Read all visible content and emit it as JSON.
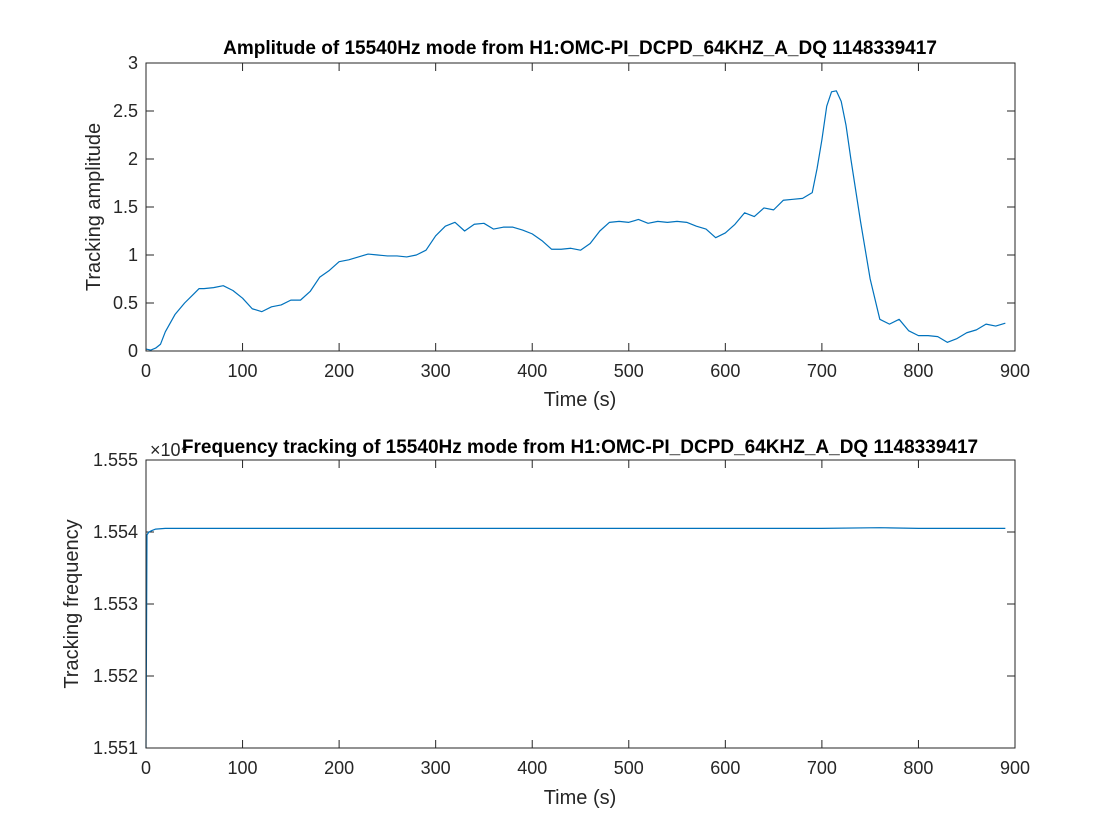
{
  "colors": {
    "series": "#0072BD",
    "axes": "#262626",
    "background": "#ffffff"
  },
  "chart_data": [
    {
      "type": "line",
      "title": "Amplitude of 15540Hz mode from H1:OMC-PI_DCPD_64KHZ_A_DQ 1148339417",
      "xlabel": "Time (s)",
      "ylabel": "Tracking amplitude",
      "xlim": [
        0,
        900
      ],
      "ylim": [
        0,
        3
      ],
      "xticks": [
        0,
        100,
        200,
        300,
        400,
        500,
        600,
        700,
        800,
        900
      ],
      "xtick_labels": [
        "0",
        "100",
        "200",
        "300",
        "400",
        "500",
        "600",
        "700",
        "800",
        "900"
      ],
      "yticks": [
        0,
        0.5,
        1,
        1.5,
        2,
        2.5,
        3
      ],
      "ytick_labels": [
        "0",
        "0.5",
        "1",
        "1.5",
        "2",
        "2.5",
        "3"
      ],
      "grid": false,
      "series": [
        {
          "x": [
            0,
            5,
            10,
            15,
            20,
            30,
            40,
            50,
            55,
            60,
            70,
            80,
            90,
            100,
            110,
            120,
            130,
            140,
            150,
            160,
            170,
            180,
            190,
            200,
            210,
            220,
            230,
            240,
            250,
            260,
            270,
            280,
            290,
            300,
            310,
            320,
            330,
            340,
            350,
            360,
            370,
            380,
            390,
            400,
            410,
            420,
            430,
            440,
            450,
            460,
            470,
            480,
            490,
            500,
            510,
            520,
            530,
            540,
            550,
            560,
            570,
            580,
            590,
            600,
            610,
            620,
            630,
            640,
            650,
            660,
            670,
            680,
            690,
            695,
            700,
            705,
            710,
            715,
            720,
            725,
            730,
            740,
            750,
            760,
            770,
            780,
            790,
            800,
            810,
            820,
            830,
            840,
            850,
            860,
            870,
            880,
            890
          ],
          "y": [
            0.02,
            0.01,
            0.03,
            0.07,
            0.2,
            0.38,
            0.5,
            0.6,
            0.65,
            0.65,
            0.66,
            0.68,
            0.63,
            0.55,
            0.44,
            0.41,
            0.46,
            0.48,
            0.53,
            0.53,
            0.62,
            0.77,
            0.84,
            0.93,
            0.95,
            0.98,
            1.01,
            1.0,
            0.99,
            0.99,
            0.98,
            1.0,
            1.05,
            1.2,
            1.3,
            1.34,
            1.25,
            1.32,
            1.33,
            1.27,
            1.29,
            1.29,
            1.26,
            1.22,
            1.15,
            1.06,
            1.06,
            1.07,
            1.05,
            1.12,
            1.25,
            1.34,
            1.35,
            1.34,
            1.37,
            1.33,
            1.35,
            1.34,
            1.35,
            1.34,
            1.3,
            1.27,
            1.18,
            1.23,
            1.32,
            1.44,
            1.4,
            1.49,
            1.47,
            1.57,
            1.58,
            1.59,
            1.65,
            1.9,
            2.2,
            2.55,
            2.7,
            2.71,
            2.6,
            2.35,
            2.0,
            1.35,
            0.75,
            0.33,
            0.28,
            0.33,
            0.21,
            0.16,
            0.16,
            0.15,
            0.09,
            0.13,
            0.19,
            0.22,
            0.28,
            0.26,
            0.29
          ]
        }
      ]
    },
    {
      "type": "line",
      "title": "Frequency tracking of 15540Hz mode from H1:OMC-PI_DCPD_64KHZ_A_DQ 1148339417",
      "xlabel": "Time (s)",
      "ylabel": "Tracking frequency",
      "xlim": [
        0,
        900
      ],
      "ylim": [
        15510,
        15550
      ],
      "y_exponent_label": "×10⁴",
      "xticks": [
        0,
        100,
        200,
        300,
        400,
        500,
        600,
        700,
        800,
        900
      ],
      "xtick_labels": [
        "0",
        "100",
        "200",
        "300",
        "400",
        "500",
        "600",
        "700",
        "800",
        "900"
      ],
      "yticks": [
        15510,
        15520,
        15530,
        15540,
        15550
      ],
      "ytick_labels": [
        "1.551",
        "1.552",
        "1.553",
        "1.554",
        "1.555"
      ],
      "grid": false,
      "series": [
        {
          "x": [
            0,
            1,
            3,
            6,
            10,
            20,
            50,
            100,
            200,
            300,
            400,
            500,
            600,
            700,
            760,
            800,
            850,
            890
          ],
          "y": [
            15510,
            15539.6,
            15540.0,
            15540.2,
            15540.4,
            15540.5,
            15540.5,
            15540.5,
            15540.5,
            15540.5,
            15540.5,
            15540.5,
            15540.5,
            15540.5,
            15540.6,
            15540.5,
            15540.5,
            15540.5
          ]
        }
      ]
    }
  ]
}
